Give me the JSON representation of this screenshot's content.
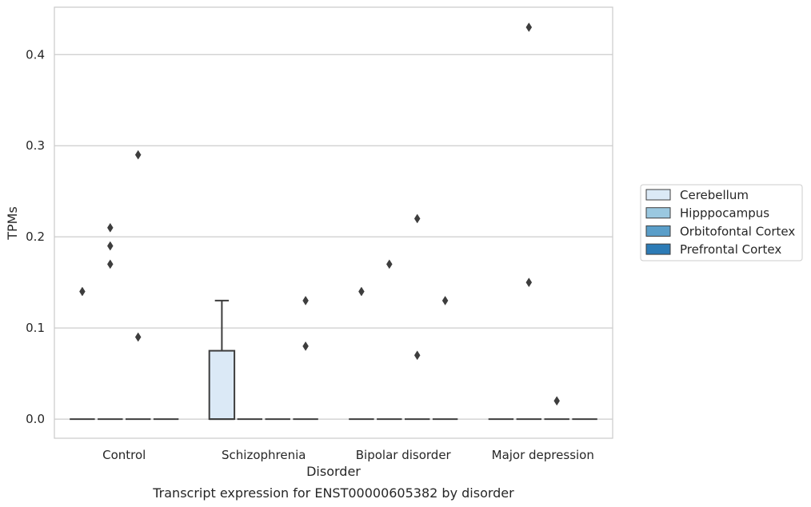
{
  "chart_data": {
    "type": "box",
    "title": "Transcript expression for ENST00000605382 by disorder",
    "xlabel": "Disorder",
    "ylabel": "TPMs",
    "categories": [
      "Control",
      "Schizophrenia",
      "Bipolar disorder",
      "Major depression"
    ],
    "ylim": [
      -0.021,
      0.452
    ],
    "yticks": [
      0.0,
      0.1,
      0.2,
      0.3,
      0.4
    ],
    "ytick_labels": [
      "0.0",
      "0.1",
      "0.2",
      "0.3",
      "0.4"
    ],
    "grid": "horizontal",
    "legend_placement": "right",
    "series": [
      {
        "name": "Cerebellum",
        "color": "#dbe9f6",
        "boxes": [
          {
            "category": "Control",
            "q1": 0,
            "median": 0,
            "q3": 0,
            "whisker_low": 0,
            "whisker_high": 0,
            "outliers": [
              0.14
            ]
          },
          {
            "category": "Schizophrenia",
            "q1": 0,
            "median": 0,
            "q3": 0.075,
            "whisker_low": 0,
            "whisker_high": 0.13,
            "outliers": []
          },
          {
            "category": "Bipolar disorder",
            "q1": 0,
            "median": 0,
            "q3": 0,
            "whisker_low": 0,
            "whisker_high": 0,
            "outliers": [
              0.14
            ]
          },
          {
            "category": "Major depression",
            "q1": 0,
            "median": 0,
            "q3": 0,
            "whisker_low": 0,
            "whisker_high": 0,
            "outliers": []
          }
        ]
      },
      {
        "name": "Hipppocampus",
        "color": "#9ac8e0",
        "boxes": [
          {
            "category": "Control",
            "q1": 0,
            "median": 0,
            "q3": 0,
            "whisker_low": 0,
            "whisker_high": 0,
            "outliers": [
              0.17,
              0.19,
              0.21
            ]
          },
          {
            "category": "Schizophrenia",
            "q1": 0,
            "median": 0,
            "q3": 0,
            "whisker_low": 0,
            "whisker_high": 0,
            "outliers": []
          },
          {
            "category": "Bipolar disorder",
            "q1": 0,
            "median": 0,
            "q3": 0,
            "whisker_low": 0,
            "whisker_high": 0,
            "outliers": [
              0.17
            ]
          },
          {
            "category": "Major depression",
            "q1": 0,
            "median": 0,
            "q3": 0,
            "whisker_low": 0,
            "whisker_high": 0,
            "outliers": [
              0.43,
              0.15
            ]
          }
        ]
      },
      {
        "name": "Orbitofontal Cortex",
        "color": "#5a9ec9",
        "boxes": [
          {
            "category": "Control",
            "q1": 0,
            "median": 0,
            "q3": 0,
            "whisker_low": 0,
            "whisker_high": 0,
            "outliers": [
              0.29,
              0.09
            ]
          },
          {
            "category": "Schizophrenia",
            "q1": 0,
            "median": 0,
            "q3": 0,
            "whisker_low": 0,
            "whisker_high": 0,
            "outliers": []
          },
          {
            "category": "Bipolar disorder",
            "q1": 0,
            "median": 0,
            "q3": 0,
            "whisker_low": 0,
            "whisker_high": 0,
            "outliers": [
              0.22,
              0.07
            ]
          },
          {
            "category": "Major depression",
            "q1": 0,
            "median": 0,
            "q3": 0,
            "whisker_low": 0,
            "whisker_high": 0,
            "outliers": [
              0.02
            ]
          }
        ]
      },
      {
        "name": "Prefrontal Cortex",
        "color": "#2c7bb6",
        "boxes": [
          {
            "category": "Control",
            "q1": 0,
            "median": 0,
            "q3": 0,
            "whisker_low": 0,
            "whisker_high": 0,
            "outliers": []
          },
          {
            "category": "Schizophrenia",
            "q1": 0,
            "median": 0,
            "q3": 0,
            "whisker_low": 0,
            "whisker_high": 0,
            "outliers": [
              0.13,
              0.08
            ]
          },
          {
            "category": "Bipolar disorder",
            "q1": 0,
            "median": 0,
            "q3": 0,
            "whisker_low": 0,
            "whisker_high": 0,
            "outliers": [
              0.13
            ]
          },
          {
            "category": "Major depression",
            "q1": 0,
            "median": 0,
            "q3": 0,
            "whisker_low": 0,
            "whisker_high": 0,
            "outliers": []
          }
        ]
      }
    ]
  }
}
